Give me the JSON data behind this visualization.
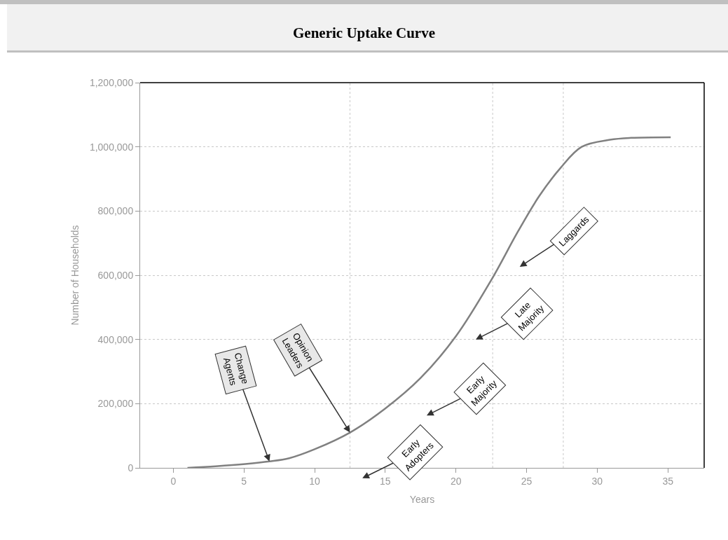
{
  "chart_data": {
    "type": "line",
    "title": "Generic Uptake Curve",
    "xlabel": "Years",
    "ylabel": "Number of Households",
    "x": [
      1,
      3,
      5.1,
      6.8,
      8.2,
      10,
      12.5,
      15,
      17.5,
      20,
      22.5,
      24.4,
      25.9,
      27.4,
      28.9,
      30.9,
      32.4,
      35.2
    ],
    "series": [
      {
        "color": "#808080",
        "values": [
          0,
          5000,
          12000,
          20000,
          30000,
          58000,
          110000,
          185000,
          280000,
          410000,
          585000,
          737000,
          847000,
          934000,
          1000000,
          1022000,
          1028000,
          1030000
        ]
      }
    ],
    "xlim": [
      -2.35,
      37.57
    ],
    "xticks": [
      0,
      5,
      10,
      15,
      20,
      25,
      30,
      35
    ],
    "ylim": [
      0,
      1200000
    ],
    "yticks": [
      0,
      {
        "value": 200000,
        "label": "200,000"
      },
      {
        "value": 400000,
        "label": "400,000"
      },
      {
        "value": 600000,
        "label": "600,000"
      },
      {
        "value": 800000,
        "label": "800,000"
      },
      {
        "value": 1000000,
        "label": "1,000,000"
      },
      {
        "value": 1200000,
        "label": "1,200,000"
      }
    ],
    "grid": "y",
    "marker": "none",
    "line_style": "solid",
    "ref_lines": [
      {
        "axis": "x",
        "value": 12.5,
        "color": "#c8c8c8",
        "line_style": "dotted"
      },
      {
        "axis": "x",
        "value": 22.6,
        "color": "#c8c8c8",
        "line_style": "dotted"
      },
      {
        "axis": "x",
        "value": 27.6,
        "color": "#c8c8c8",
        "line_style": "dotted"
      }
    ],
    "annotations": [
      {
        "text": "Change Agents",
        "x": 6.8,
        "y": 20000
      },
      {
        "text": "Opinion Leaders",
        "x": 12.5,
        "y": 110000
      },
      "Early Adopters",
      "Early Majority",
      "Late Majority",
      "Laggards"
    ]
  }
}
